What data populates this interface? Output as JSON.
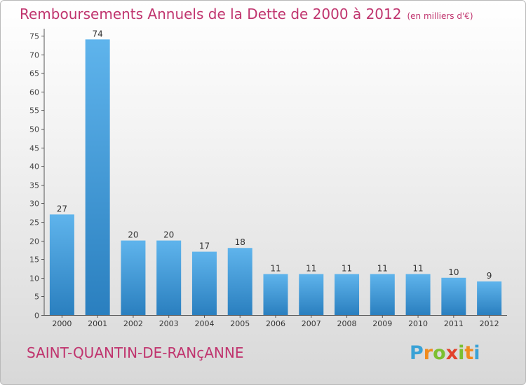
{
  "title": {
    "main": "Remboursements Annuels de la Dette de 2000 à 2012",
    "unit": "(en milliers d'€)"
  },
  "footer": {
    "town": "SAINT-QUANTIN-DE-RANçANNE",
    "logo_text": "Proxiti"
  },
  "colors": {
    "title": "#c0346e",
    "bar_light": "#5fb4ec",
    "bar_dark": "#2a7fbf",
    "logo": [
      "#3aa2d6",
      "#f08b1d",
      "#7cbf31",
      "#3aa2d6",
      "#e2422c"
    ]
  },
  "chart_data": {
    "type": "bar",
    "categories": [
      "2000",
      "2001",
      "2002",
      "2003",
      "2004",
      "2005",
      "2006",
      "2007",
      "2008",
      "2009",
      "2010",
      "2011",
      "2012"
    ],
    "values": [
      27,
      74,
      20,
      20,
      17,
      18,
      11,
      11,
      11,
      11,
      11,
      10,
      9
    ],
    "data_labels": [
      "27",
      "74",
      "20",
      "20",
      "17",
      "18",
      "11",
      "11",
      "11",
      "11",
      "11",
      "10",
      "9"
    ],
    "yticks": [
      0,
      5,
      10,
      15,
      20,
      25,
      30,
      35,
      40,
      45,
      50,
      55,
      60,
      65,
      70,
      75
    ],
    "ylim": [
      0,
      75
    ],
    "grid": false,
    "xlabel": "",
    "ylabel": ""
  }
}
